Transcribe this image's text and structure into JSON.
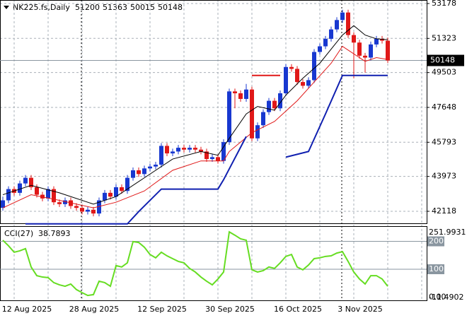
{
  "chart_data": [
    {
      "type": "candlestick",
      "title": "NK225.fs,Daily",
      "header_values": [
        51200,
        51363,
        50015,
        50148
      ],
      "up_color": "#1838d0",
      "down_color": "#e01818",
      "candles": [
        [
          42300,
          42900,
          42150,
          42700
        ],
        [
          42700,
          43450,
          42550,
          43300
        ],
        [
          43300,
          43450,
          42950,
          43100
        ],
        [
          43100,
          43750,
          42950,
          43600
        ],
        [
          43600,
          44050,
          43450,
          43900
        ],
        [
          43900,
          44050,
          43250,
          43400
        ],
        [
          43400,
          43550,
          42850,
          43000
        ],
        [
          43000,
          43150,
          42650,
          42800
        ],
        [
          42800,
          43450,
          42650,
          43300
        ],
        [
          43300,
          43450,
          42450,
          42600
        ],
        [
          42600,
          42750,
          42350,
          42500
        ],
        [
          42500,
          42850,
          42350,
          42700
        ],
        [
          42700,
          42850,
          42250,
          42400
        ],
        [
          42400,
          42550,
          42150,
          42300
        ],
        [
          42300,
          42450,
          41950,
          42100
        ],
        [
          42100,
          42350,
          41950,
          42200
        ],
        [
          42200,
          42350,
          41850,
          42000
        ],
        [
          42000,
          42850,
          41850,
          42700
        ],
        [
          42700,
          43250,
          42550,
          43100
        ],
        [
          43100,
          43250,
          42750,
          42900
        ],
        [
          42900,
          43550,
          42750,
          43400
        ],
        [
          43400,
          43550,
          43050,
          43200
        ],
        [
          43200,
          44050,
          43050,
          43900
        ],
        [
          43900,
          44450,
          43750,
          44300
        ],
        [
          44300,
          44450,
          43950,
          44100
        ],
        [
          44100,
          44550,
          43950,
          44400
        ],
        [
          44400,
          44650,
          44250,
          44500
        ],
        [
          44500,
          44750,
          44350,
          44600
        ],
        [
          44600,
          45750,
          44450,
          45600
        ],
        [
          45600,
          45750,
          45050,
          45200
        ],
        [
          45200,
          45450,
          45050,
          45300
        ],
        [
          45300,
          45650,
          45150,
          45500
        ],
        [
          45500,
          45650,
          45250,
          45400
        ],
        [
          45400,
          45650,
          45250,
          45500
        ],
        [
          45500,
          45650,
          45250,
          45400
        ],
        [
          45400,
          45550,
          45150,
          45300
        ],
        [
          45300,
          45450,
          44750,
          44900
        ],
        [
          44900,
          45150,
          44750,
          45000
        ],
        [
          45000,
          45150,
          44650,
          44800
        ],
        [
          44800,
          45950,
          44650,
          45800
        ],
        [
          45800,
          48650,
          45650,
          48500
        ],
        [
          48500,
          48650,
          47600,
          48400
        ],
        [
          48400,
          48550,
          47950,
          48100
        ],
        [
          48100,
          48900,
          47950,
          48600
        ],
        [
          48600,
          48750,
          45850,
          46000
        ],
        [
          46000,
          46850,
          45850,
          46700
        ],
        [
          46700,
          47550,
          46550,
          47400
        ],
        [
          47400,
          48150,
          47250,
          48000
        ],
        [
          48000,
          48150,
          47450,
          47600
        ],
        [
          47600,
          48550,
          47450,
          48400
        ],
        [
          48400,
          49950,
          48250,
          49800
        ],
        [
          49800,
          49950,
          49550,
          49700
        ],
        [
          49700,
          49850,
          48850,
          49000
        ],
        [
          49000,
          49150,
          48650,
          48800
        ],
        [
          48800,
          49250,
          48650,
          49100
        ],
        [
          49100,
          50750,
          48950,
          50600
        ],
        [
          50600,
          51050,
          50450,
          50900
        ],
        [
          50900,
          51450,
          50750,
          51300
        ],
        [
          51300,
          51950,
          51150,
          51800
        ],
        [
          51800,
          52450,
          51650,
          52300
        ],
        [
          52300,
          52850,
          52150,
          52700
        ],
        [
          52700,
          52850,
          51350,
          51500
        ],
        [
          51500,
          51650,
          49200,
          51100
        ],
        [
          51100,
          51250,
          50250,
          50400
        ],
        [
          50400,
          50550,
          49500,
          50300
        ],
        [
          50300,
          51150,
          50150,
          51000
        ],
        [
          51000,
          51450,
          50850,
          51300
        ],
        [
          51300,
          51450,
          51050,
          51200
        ],
        [
          51200,
          51363,
          50015,
          50148
        ]
      ],
      "series": [
        {
          "color": "#000000",
          "width": 1,
          "x": [
            0,
            5,
            10,
            16,
            20,
            25,
            30,
            35,
            38,
            40,
            43,
            45,
            48,
            50,
            53,
            56,
            60,
            62,
            64,
            66,
            68
          ],
          "values": [
            43000,
            43500,
            43100,
            42500,
            42900,
            43900,
            44900,
            45300,
            45100,
            46000,
            47300,
            47700,
            47500,
            48300,
            49200,
            50000,
            51500,
            52000,
            51500,
            51300,
            51250
          ]
        },
        {
          "color": "#e01818",
          "width": 1,
          "x": [
            0,
            5,
            10,
            16,
            20,
            25,
            30,
            35,
            39,
            40,
            44,
            48,
            52,
            55,
            58,
            60,
            62,
            64,
            66,
            68
          ],
          "values": [
            42300,
            43000,
            42700,
            42300,
            42600,
            43200,
            44300,
            44800,
            44800,
            45300,
            46300,
            46900,
            48000,
            49000,
            50000,
            50900,
            50500,
            50100,
            50300,
            50200
          ]
        },
        {
          "color": "#1020b0",
          "width": 2,
          "x": [
            4,
            22,
            24,
            28,
            38,
            39,
            43,
            null,
            50,
            54,
            57,
            60,
            68
          ],
          "values": [
            41450,
            41450,
            42100,
            43300,
            43300,
            43800,
            46100,
            null,
            45000,
            45300,
            47300,
            49350,
            49350
          ]
        },
        {
          "color": "#e01818",
          "width": 2,
          "x": [
            44,
            49
          ],
          "values": [
            49350,
            49350
          ]
        }
      ],
      "last_price": 50148,
      "ylim": [
        41478,
        53366
      ],
      "yticks": [
        53178,
        51323,
        49503,
        47648,
        45793,
        43973,
        42118
      ],
      "grid": true,
      "x_labels": [
        "12 Aug 2025",
        "28 Aug 2025",
        "12 Sep 2025",
        "30 Sep 2025",
        "16 Oct 2025",
        "3 Nov 2025"
      ]
    },
    {
      "type": "line",
      "title": "CCI(27)",
      "current": 38.7893,
      "color": "#66dd22",
      "values": [
        204,
        184,
        161,
        166,
        174,
        108,
        77,
        72,
        70,
        52,
        44,
        39,
        47,
        27,
        16,
        6,
        9,
        57,
        52,
        39,
        113,
        108,
        123,
        199,
        196,
        179,
        153,
        141,
        161,
        148,
        138,
        128,
        123,
        103,
        90,
        72,
        57,
        44,
        65,
        90,
        234,
        222,
        209,
        204,
        98,
        90,
        95,
        108,
        103,
        123,
        146,
        153,
        108,
        98,
        115,
        138,
        141,
        146,
        148,
        158,
        163,
        128,
        90,
        65,
        47,
        77,
        77,
        65,
        38.7893
      ],
      "ylim": [
        -11.4902,
        251.9931
      ],
      "yticks": [
        251.9931,
        200,
        100,
        {
          "value": 0,
          "label": "0.00"
        },
        -11.4902
      ],
      "levels": [
        200,
        100
      ]
    }
  ]
}
